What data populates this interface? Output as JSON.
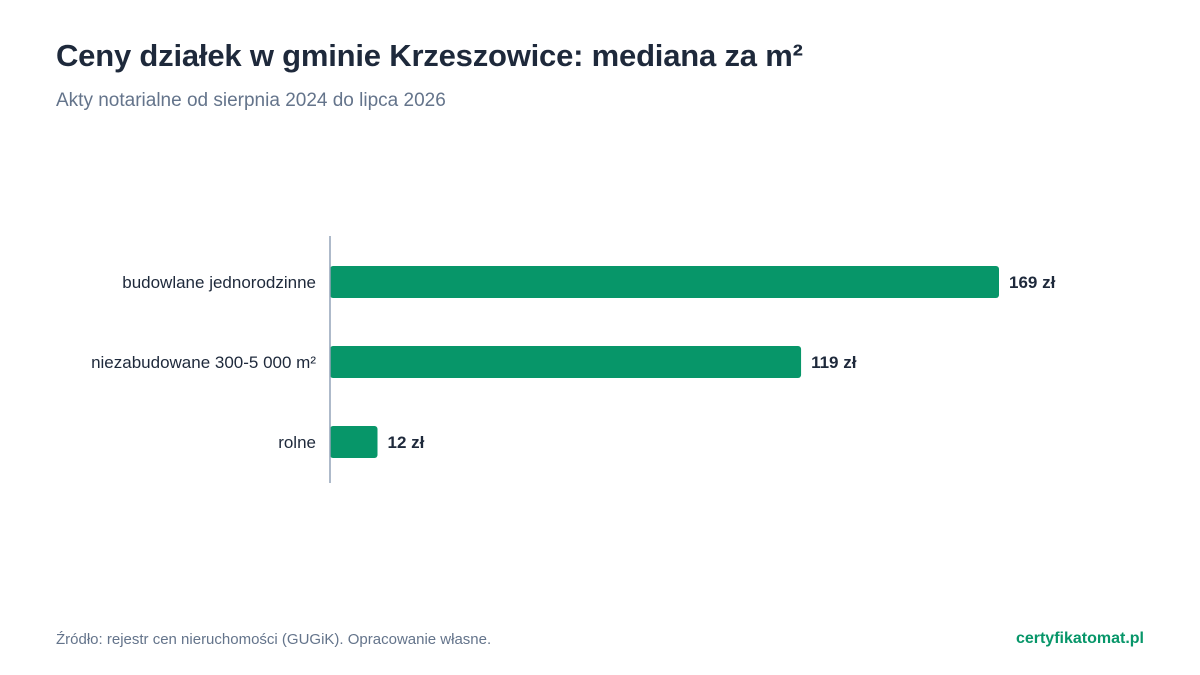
{
  "header": {
    "title": "Ceny działek w gminie Krzeszowice: mediana za m²",
    "subtitle": "Akty notarialne od sierpnia 2024 do lipca 2026"
  },
  "footer": {
    "source": "Źródło: rejestr cen nieruchomości (GUGiK). Opracowanie własne.",
    "brand": "certyfikatomat.pl"
  },
  "colors": {
    "bar": "#079669",
    "axis": "#94a3b8",
    "text": "#1e293b",
    "muted": "#64748b"
  },
  "chart_data": {
    "type": "bar",
    "orientation": "horizontal",
    "categories": [
      "budowlane jednorodzinne",
      "niezabudowane 300-5 000 m²",
      "rolne"
    ],
    "values": [
      169,
      119,
      12
    ],
    "value_labels": [
      "169 zł",
      "119 zł",
      "12 zł"
    ],
    "xlim": [
      0,
      169
    ],
    "grid": false,
    "legend": "none"
  }
}
